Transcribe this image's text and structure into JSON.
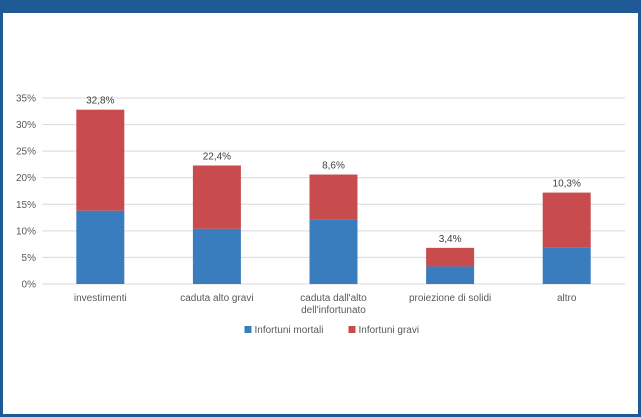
{
  "colors": {
    "frame": "#1f5a96",
    "series_mortali": "#3a7dbf",
    "series_gravi": "#c84b4d",
    "grid": "#d9d9d9",
    "text": "#595959"
  },
  "chart_data": {
    "type": "bar",
    "stacked": true,
    "categories": [
      [
        "investimenti"
      ],
      [
        "caduta alto gravi"
      ],
      [
        "caduta dall'alto",
        "dell'infortunato"
      ],
      [
        "proiezione di solidi"
      ],
      [
        "altro"
      ]
    ],
    "series": [
      {
        "name": "Infortuni mortali",
        "values": [
          13.8,
          10.4,
          12.1,
          3.3,
          6.9
        ]
      },
      {
        "name": "Infortuni gravi",
        "values": [
          19.0,
          11.9,
          8.5,
          3.5,
          10.3
        ]
      }
    ],
    "data_labels": [
      "32,8%",
      "22,4%",
      "8,6%",
      "3,4%",
      "10,3%"
    ],
    "y_ticks": [
      "0%",
      "5%",
      "10%",
      "15%",
      "20%",
      "25%",
      "30%",
      "35%"
    ],
    "ylim": [
      0,
      35
    ],
    "grid": true,
    "legend_position": "bottom"
  }
}
